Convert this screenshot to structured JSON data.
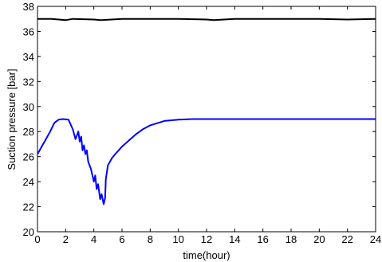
{
  "chart_data": {
    "type": "line",
    "title": "",
    "xlabel": "time(hour)",
    "ylabel": "Suction pressure [bar]",
    "xlim": [
      0,
      24
    ],
    "ylim": [
      20,
      38
    ],
    "grid": false,
    "x_ticks": [
      0,
      2,
      4,
      6,
      8,
      10,
      12,
      14,
      16,
      18,
      20,
      22,
      24
    ],
    "y_ticks": [
      20,
      22,
      24,
      26,
      28,
      30,
      32,
      34,
      36,
      38
    ],
    "series": [
      {
        "color": "#000000",
        "x": [
          0,
          1,
          2,
          2.5,
          4,
          4.5,
          6,
          8,
          10,
          12,
          12.5,
          14,
          16,
          18,
          20,
          22,
          24
        ],
        "y": [
          37.0,
          37.0,
          36.9,
          37.0,
          36.95,
          36.9,
          37.0,
          37.0,
          37.0,
          36.95,
          36.9,
          37.0,
          37.0,
          37.0,
          37.0,
          36.95,
          37.0
        ]
      },
      {
        "color": "#0000ff",
        "x": [
          0,
          0.3,
          0.6,
          0.9,
          1.2,
          1.5,
          1.8,
          2.2,
          2.5,
          2.7,
          2.9,
          3.0,
          3.1,
          3.2,
          3.3,
          3.4,
          3.5,
          3.6,
          3.8,
          4.0,
          4.1,
          4.2,
          4.3,
          4.45,
          4.55,
          4.7,
          4.8,
          4.85,
          5.0,
          5.3,
          5.6,
          6.0,
          6.5,
          7.0,
          7.5,
          8.0,
          9.0,
          10.0,
          11.0,
          12.0,
          13.0,
          14.0,
          16.0,
          18.0,
          20.0,
          22.0,
          24.0
        ],
        "y": [
          26.2,
          26.8,
          27.4,
          28.0,
          28.7,
          28.95,
          29.0,
          28.95,
          28.2,
          27.4,
          28.0,
          27.2,
          27.6,
          26.5,
          26.9,
          26.2,
          26.5,
          25.6,
          25.0,
          24.0,
          24.5,
          23.4,
          23.8,
          22.6,
          23.0,
          22.2,
          22.7,
          24.2,
          25.3,
          25.9,
          26.3,
          26.8,
          27.3,
          27.8,
          28.2,
          28.5,
          28.85,
          28.95,
          29.0,
          29.0,
          29.0,
          29.0,
          29.0,
          29.0,
          29.0,
          29.0,
          29.0
        ]
      }
    ]
  }
}
